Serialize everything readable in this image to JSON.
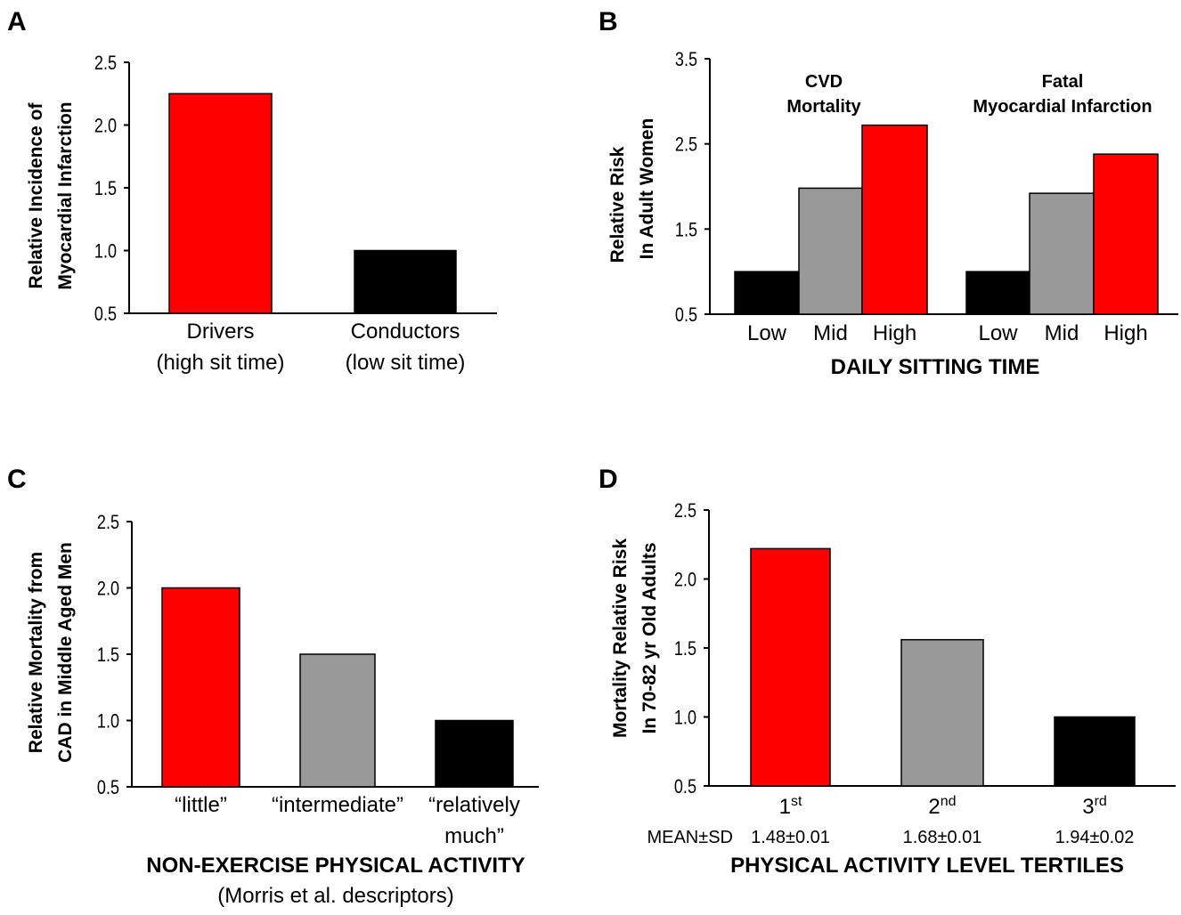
{
  "chart_data": [
    {
      "panel": "A",
      "type": "bar",
      "ylabel": [
        "Relative Incidence of",
        "Myocardial Infarction"
      ],
      "ylim": [
        0.5,
        2.5
      ],
      "yticks": [
        "0.5",
        "1.0",
        "1.5",
        "2.0",
        "2.5"
      ],
      "categories": [
        [
          "Drivers",
          "(high sit time)"
        ],
        [
          "Conductors",
          "(low sit time)"
        ]
      ],
      "values": [
        2.25,
        1.0
      ],
      "colors": [
        "#ff0000",
        "#000000"
      ]
    },
    {
      "panel": "B",
      "type": "bar",
      "ylabel": [
        "Relative Risk",
        "In Adult Women"
      ],
      "xlabel": "DAILY SITTING TIME",
      "ylim": [
        0.5,
        3.5
      ],
      "yticks": [
        "0.5",
        "1.5",
        "2.5",
        "3.5"
      ],
      "groups": [
        {
          "name": [
            "CVD",
            "Mortality"
          ],
          "categories": [
            "Low",
            "Mid",
            "High"
          ],
          "values": [
            1.0,
            1.98,
            2.72
          ],
          "colors": [
            "#000000",
            "#999999",
            "#ff0000"
          ]
        },
        {
          "name": [
            "Fatal",
            "Myocardial Infarction"
          ],
          "categories": [
            "Low",
            "Mid",
            "High"
          ],
          "values": [
            1.0,
            1.92,
            2.38
          ],
          "colors": [
            "#000000",
            "#999999",
            "#ff0000"
          ]
        }
      ]
    },
    {
      "panel": "C",
      "type": "bar",
      "ylabel": [
        "Relative Mortality from",
        "CAD in Middle Aged Men"
      ],
      "xlabel": "NON-EXERCISE PHYSICAL ACTIVITY",
      "subtitle": "(Morris et al. descriptors)",
      "ylim": [
        0.5,
        2.5
      ],
      "yticks": [
        "0.5",
        "1.0",
        "1.5",
        "2.0",
        "2.5"
      ],
      "categories": [
        [
          "“little”"
        ],
        [
          "“intermediate”"
        ],
        [
          "“relatively",
          "much”"
        ]
      ],
      "values": [
        2.0,
        1.5,
        1.0
      ],
      "colors": [
        "#ff0000",
        "#999999",
        "#000000"
      ]
    },
    {
      "panel": "D",
      "type": "bar",
      "ylabel": [
        "Mortality Relative Risk",
        "In 70-82 yr Old Adults"
      ],
      "xlabel": "PHYSICAL ACTIVITY LEVEL TERTILES",
      "ylim": [
        0.5,
        2.5
      ],
      "yticks": [
        "0.5",
        "1.0",
        "1.5",
        "2.0",
        "2.5"
      ],
      "categories": [
        {
          "base": "1",
          "sup": "st"
        },
        {
          "base": "2",
          "sup": "nd"
        },
        {
          "base": "3",
          "sup": "rd"
        }
      ],
      "mean_label": "MEAN±SD",
      "means": [
        "1.48±0.01",
        "1.68±0.01",
        "1.94±0.02"
      ],
      "values": [
        2.22,
        1.56,
        1.0
      ],
      "colors": [
        "#ff0000",
        "#999999",
        "#000000"
      ]
    }
  ]
}
